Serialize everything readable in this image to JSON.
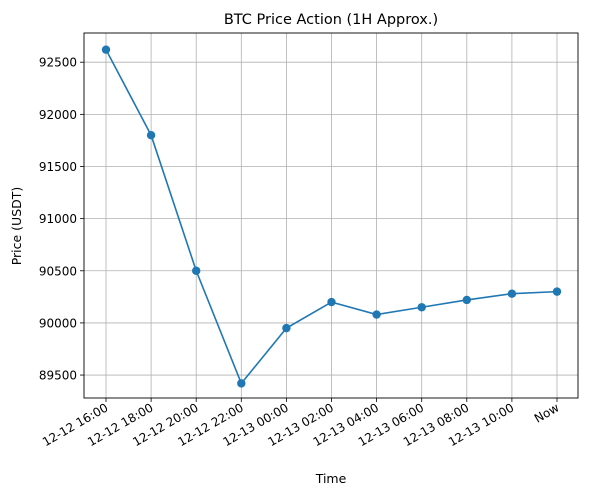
{
  "chart_data": {
    "type": "line",
    "title": "BTC Price Action (1H Approx.)",
    "xlabel": "Time",
    "ylabel": "Price (USDT)",
    "categories": [
      "12-12 16:00",
      "12-12 18:00",
      "12-12 20:00",
      "12-12 22:00",
      "12-13 00:00",
      "12-13 02:00",
      "12-13 04:00",
      "12-13 06:00",
      "12-13 08:00",
      "12-13 10:00",
      "Now"
    ],
    "series": [
      {
        "values": [
          92620,
          91800,
          90500,
          89420,
          89950,
          90200,
          90080,
          90150,
          90220,
          90280,
          90300
        ],
        "color": "#1f77b4"
      }
    ],
    "yticks": [
      89500,
      90000,
      90500,
      91000,
      91500,
      92000,
      92500
    ],
    "ylim": [
      89280,
      92780
    ],
    "grid": true,
    "marker": "circle"
  }
}
